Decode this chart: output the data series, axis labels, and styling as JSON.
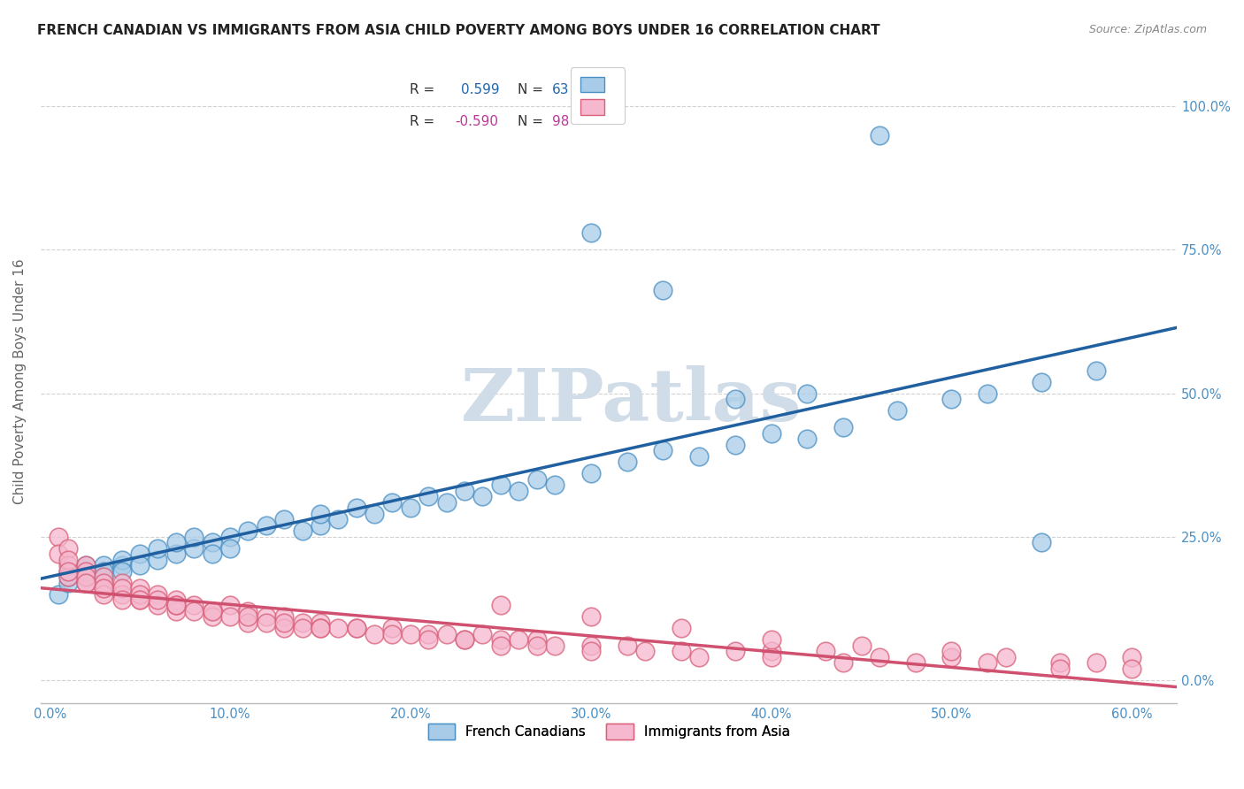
{
  "title": "FRENCH CANADIAN VS IMMIGRANTS FROM ASIA CHILD POVERTY AMONG BOYS UNDER 16 CORRELATION CHART",
  "source": "Source: ZipAtlas.com",
  "ylabel_label": "Child Poverty Among Boys Under 16",
  "xlim": [
    -0.005,
    0.625
  ],
  "ylim": [
    -0.04,
    1.08
  ],
  "blue_R": 0.599,
  "blue_N": 63,
  "pink_R": -0.59,
  "pink_N": 98,
  "blue_color": "#a8cce8",
  "blue_edge": "#4a90c4",
  "pink_color": "#f5b8ce",
  "pink_edge": "#d9607a",
  "blue_line_color": "#2060a0",
  "pink_line_color": "#d05070",
  "watermark_color": "#d0dce8",
  "background_color": "#ffffff",
  "grid_color": "#cccccc",
  "ylabel_color": "#4a90c4",
  "xlabel_color": "#4a90c4",
  "title_color": "#222222",
  "source_color": "#888888",
  "legend_text_color": "#333333",
  "blue_scatter_x": [
    0.005,
    0.01,
    0.01,
    0.01,
    0.02,
    0.02,
    0.02,
    0.03,
    0.03,
    0.03,
    0.04,
    0.04,
    0.04,
    0.05,
    0.05,
    0.06,
    0.06,
    0.07,
    0.07,
    0.08,
    0.08,
    0.09,
    0.09,
    0.1,
    0.1,
    0.11,
    0.12,
    0.13,
    0.14,
    0.15,
    0.15,
    0.16,
    0.17,
    0.18,
    0.19,
    0.2,
    0.21,
    0.22,
    0.23,
    0.24,
    0.25,
    0.26,
    0.27,
    0.28,
    0.3,
    0.32,
    0.34,
    0.36,
    0.38,
    0.4,
    0.42,
    0.44,
    0.47,
    0.5,
    0.52,
    0.55,
    0.58,
    0.3,
    0.34,
    0.38,
    0.42,
    0.46,
    0.55
  ],
  "blue_scatter_y": [
    0.15,
    0.17,
    0.18,
    0.19,
    0.18,
    0.2,
    0.19,
    0.2,
    0.18,
    0.19,
    0.2,
    0.21,
    0.19,
    0.22,
    0.2,
    0.21,
    0.23,
    0.22,
    0.24,
    0.23,
    0.25,
    0.24,
    0.22,
    0.25,
    0.23,
    0.26,
    0.27,
    0.28,
    0.26,
    0.27,
    0.29,
    0.28,
    0.3,
    0.29,
    0.31,
    0.3,
    0.32,
    0.31,
    0.33,
    0.32,
    0.34,
    0.33,
    0.35,
    0.34,
    0.36,
    0.38,
    0.4,
    0.39,
    0.41,
    0.43,
    0.42,
    0.44,
    0.47,
    0.49,
    0.5,
    0.52,
    0.54,
    0.78,
    0.68,
    0.49,
    0.5,
    0.95,
    0.24
  ],
  "pink_scatter_x": [
    0.005,
    0.005,
    0.01,
    0.01,
    0.01,
    0.01,
    0.01,
    0.02,
    0.02,
    0.02,
    0.02,
    0.03,
    0.03,
    0.03,
    0.03,
    0.04,
    0.04,
    0.04,
    0.04,
    0.05,
    0.05,
    0.05,
    0.06,
    0.06,
    0.06,
    0.07,
    0.07,
    0.07,
    0.08,
    0.08,
    0.09,
    0.09,
    0.1,
    0.1,
    0.11,
    0.11,
    0.12,
    0.12,
    0.13,
    0.13,
    0.14,
    0.14,
    0.15,
    0.15,
    0.16,
    0.17,
    0.18,
    0.19,
    0.2,
    0.21,
    0.22,
    0.23,
    0.24,
    0.25,
    0.26,
    0.27,
    0.28,
    0.3,
    0.32,
    0.35,
    0.38,
    0.4,
    0.43,
    0.46,
    0.5,
    0.53,
    0.56,
    0.58,
    0.6,
    0.02,
    0.03,
    0.05,
    0.07,
    0.09,
    0.11,
    0.13,
    0.15,
    0.17,
    0.19,
    0.21,
    0.23,
    0.25,
    0.27,
    0.3,
    0.33,
    0.36,
    0.4,
    0.44,
    0.48,
    0.52,
    0.56,
    0.6,
    0.25,
    0.3,
    0.35,
    0.4,
    0.45,
    0.5
  ],
  "pink_scatter_y": [
    0.25,
    0.22,
    0.23,
    0.2,
    0.18,
    0.21,
    0.19,
    0.2,
    0.17,
    0.19,
    0.18,
    0.18,
    0.16,
    0.17,
    0.15,
    0.17,
    0.15,
    0.16,
    0.14,
    0.16,
    0.14,
    0.15,
    0.15,
    0.13,
    0.14,
    0.14,
    0.12,
    0.13,
    0.13,
    0.12,
    0.12,
    0.11,
    0.13,
    0.11,
    0.12,
    0.1,
    0.11,
    0.1,
    0.11,
    0.09,
    0.1,
    0.09,
    0.1,
    0.09,
    0.09,
    0.09,
    0.08,
    0.09,
    0.08,
    0.08,
    0.08,
    0.07,
    0.08,
    0.07,
    0.07,
    0.07,
    0.06,
    0.06,
    0.06,
    0.05,
    0.05,
    0.05,
    0.05,
    0.04,
    0.04,
    0.04,
    0.03,
    0.03,
    0.04,
    0.17,
    0.16,
    0.14,
    0.13,
    0.12,
    0.11,
    0.1,
    0.09,
    0.09,
    0.08,
    0.07,
    0.07,
    0.06,
    0.06,
    0.05,
    0.05,
    0.04,
    0.04,
    0.03,
    0.03,
    0.03,
    0.02,
    0.02,
    0.13,
    0.11,
    0.09,
    0.07,
    0.06,
    0.05
  ]
}
